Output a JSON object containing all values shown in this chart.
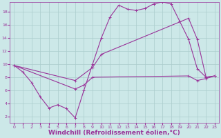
{
  "bg_color": "#cce8e8",
  "line_color": "#993399",
  "grid_color": "#aacccc",
  "xlabel": "Windchill (Refroidissement éolien,°C)",
  "xlabel_color": "#993399",
  "tick_color": "#993399",
  "xlim": [
    -0.5,
    23.5
  ],
  "ylim": [
    1,
    19.5
  ],
  "xticks": [
    0,
    1,
    2,
    3,
    4,
    5,
    6,
    7,
    8,
    9,
    10,
    11,
    12,
    13,
    14,
    15,
    16,
    17,
    18,
    19,
    20,
    21,
    22,
    23
  ],
  "yticks": [
    2,
    4,
    6,
    8,
    10,
    12,
    14,
    16,
    18
  ],
  "line1_x": [
    0,
    1,
    2,
    3,
    4,
    5,
    6,
    7,
    8,
    9,
    10,
    11,
    12,
    13,
    14,
    15,
    16,
    17,
    18,
    19,
    20,
    21,
    22,
    23
  ],
  "line1_y": [
    9.8,
    8.8,
    7.2,
    5.0,
    3.3,
    3.8,
    3.2,
    1.8,
    6.0,
    10.0,
    14.0,
    17.2,
    19.0,
    18.4,
    18.2,
    18.5,
    19.2,
    19.5,
    19.2,
    16.5,
    13.8,
    9.3,
    8.0,
    8.2
  ],
  "line2_x": [
    0,
    7,
    9,
    10,
    20,
    21,
    22,
    23
  ],
  "line2_y": [
    9.8,
    7.5,
    9.5,
    11.5,
    17.0,
    13.8,
    8.0,
    8.2
  ],
  "line3_x": [
    0,
    7,
    8,
    9,
    20,
    21,
    22,
    23
  ],
  "line3_y": [
    9.8,
    6.2,
    6.8,
    8.0,
    8.2,
    7.5,
    7.8,
    8.2
  ],
  "marker": "+",
  "marker_size": 3,
  "linewidth": 0.8,
  "tick_fontsize": 4.5,
  "xlabel_fontsize": 6.5
}
